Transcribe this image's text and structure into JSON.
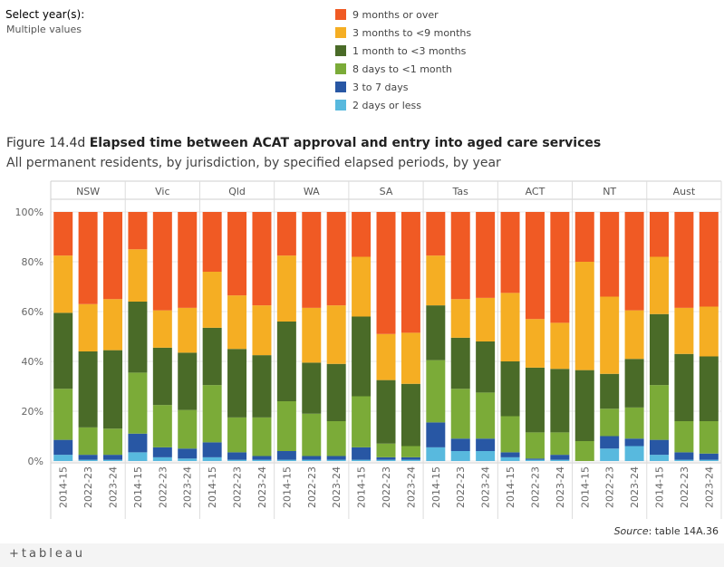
{
  "filter": {
    "title": "Select year(s):",
    "value": "Multiple values"
  },
  "legend": [
    {
      "label": "9 months or over",
      "color": "#f05a24"
    },
    {
      "label": "3 months to <9 months",
      "color": "#f5ae23"
    },
    {
      "label": "1 month to <3 months",
      "color": "#4a6b28"
    },
    {
      "label": "8 days to <1 month",
      "color": "#7bab38"
    },
    {
      "label": "3 to 7 days",
      "color": "#2857a4"
    },
    {
      "label": "2 days or less",
      "color": "#58b9de"
    }
  ],
  "heading": {
    "prefix": "Figure 14.4d ",
    "title": "Elapsed time between ACAT approval and entry into aged care services",
    "subtitle": "All permanent residents, by jurisdiction, by specified elapsed periods, by year"
  },
  "source": {
    "label": "Source",
    "text": ": table 14A.36"
  },
  "footer": {
    "logo": "+tableau"
  },
  "chart_data": {
    "type": "bar",
    "stacked": true,
    "percent": true,
    "ylim": [
      0,
      100
    ],
    "yticks": [
      "0%",
      "20%",
      "40%",
      "60%",
      "80%",
      "100%"
    ],
    "jurisdictions": [
      "NSW",
      "Vic",
      "Qld",
      "WA",
      "SA",
      "Tas",
      "ACT",
      "NT",
      "Aust"
    ],
    "years": [
      "2014-15",
      "2022-23",
      "2023-24"
    ],
    "series_order": [
      "2 days or less",
      "3 to 7 days",
      "8 days to <1 month",
      "1 month to <3 months",
      "3 months to <9 months",
      "9 months or over"
    ],
    "colors": [
      "#58b9de",
      "#2857a4",
      "#7bab38",
      "#4a6b28",
      "#f5ae23",
      "#f05a24"
    ],
    "values": {
      "NSW": [
        [
          2.5,
          6,
          20.5,
          30.5,
          23,
          17.5
        ],
        [
          0.5,
          2,
          11,
          30.5,
          19,
          37
        ],
        [
          0.5,
          2,
          10.5,
          31.5,
          20.5,
          35
        ]
      ],
      "Vic": [
        [
          3.5,
          7.5,
          24.5,
          28.5,
          21,
          15
        ],
        [
          1.5,
          4,
          17,
          23,
          15,
          39.5
        ],
        [
          1,
          4,
          15.5,
          23,
          18,
          38.5
        ]
      ],
      "Qld": [
        [
          1.5,
          6,
          23,
          23,
          22.5,
          24
        ],
        [
          0.5,
          3,
          14,
          27.5,
          21.5,
          33.5
        ],
        [
          0.5,
          1.5,
          15.5,
          25,
          20,
          37.5
        ]
      ],
      "WA": [
        [
          0.5,
          3.5,
          20,
          32,
          26.5,
          17.5
        ],
        [
          0.5,
          1.5,
          17,
          20.5,
          22,
          38.5
        ],
        [
          0.5,
          1.5,
          14,
          23,
          23.5,
          37.5
        ]
      ],
      "SA": [
        [
          0.5,
          5,
          20.5,
          32,
          24,
          18
        ],
        [
          0.5,
          1,
          5.5,
          25.5,
          18.5,
          49
        ],
        [
          0.5,
          1,
          4.5,
          25,
          20.5,
          48.5
        ]
      ],
      "Tas": [
        [
          5.5,
          10,
          25,
          22,
          20,
          17.5
        ],
        [
          4,
          5,
          20,
          20.5,
          15.5,
          35
        ],
        [
          4,
          5,
          18.5,
          20.5,
          17.5,
          34.5
        ]
      ],
      "ACT": [
        [
          1.5,
          2,
          14.5,
          22,
          27.5,
          32.5
        ],
        [
          0.5,
          0.5,
          10.5,
          26,
          19.5,
          43
        ],
        [
          0.5,
          2,
          9,
          25.5,
          18.5,
          44.5
        ]
      ],
      "NT": [
        [
          0,
          0,
          8,
          28.5,
          43.5,
          20
        ],
        [
          5,
          5,
          11,
          14,
          31,
          34
        ],
        [
          6,
          3,
          12.5,
          19.5,
          19.5,
          39.5
        ]
      ],
      "Aust": [
        [
          2.5,
          6,
          22,
          28.5,
          23,
          18
        ],
        [
          0.5,
          3,
          12.5,
          27,
          18.5,
          38.5
        ],
        [
          0.5,
          2.5,
          13,
          26,
          20,
          38
        ]
      ]
    }
  }
}
